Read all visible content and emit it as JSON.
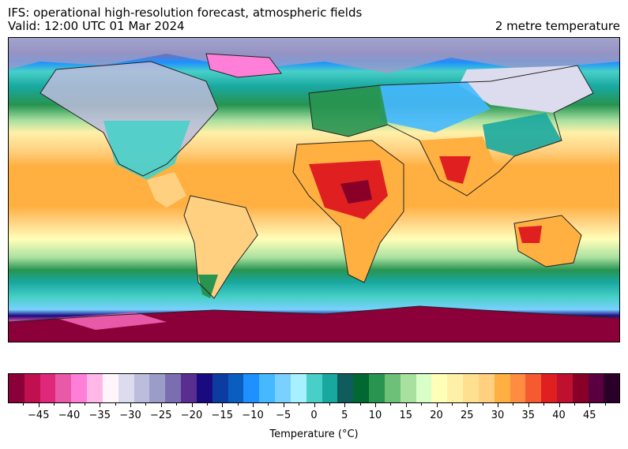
{
  "header": {
    "title_line1": "IFS: operational high-resolution forecast, atmospheric fields",
    "title_line2": "Valid: 12:00 UTC 01 Mar 2024",
    "parameter": "2 metre temperature"
  },
  "colorbar": {
    "label": "Temperature (°C)",
    "min": -50,
    "max": 50,
    "step": 2.5,
    "tick_labels": [
      "−45",
      "−40",
      "−35",
      "−30",
      "−25",
      "−20",
      "−15",
      "−10",
      "−5",
      "0",
      "5",
      "10",
      "15",
      "20",
      "25",
      "30",
      "35",
      "40",
      "45"
    ],
    "tick_values": [
      -45,
      -40,
      -35,
      -30,
      -25,
      -20,
      -15,
      -10,
      -5,
      0,
      5,
      10,
      15,
      20,
      25,
      30,
      35,
      40,
      45
    ],
    "colors": [
      "#8b0039",
      "#c0104f",
      "#e0287a",
      "#e85aa8",
      "#ff7fd8",
      "#ffb8e8",
      "#fff5fb",
      "#dcdcee",
      "#bcbcdc",
      "#9c9cc8",
      "#7a6eb0",
      "#5a2e90",
      "#1a0a80",
      "#0c3ca0",
      "#0a5ec0",
      "#1e90ff",
      "#46b8ff",
      "#7ad0ff",
      "#a6f0ff",
      "#48d0c8",
      "#18a8a0",
      "#105c5c",
      "#006830",
      "#289450",
      "#6cc078",
      "#a8e0a0",
      "#d8ffc8",
      "#ffffb8",
      "#fff0a8",
      "#ffe090",
      "#ffd080",
      "#ffb040",
      "#ff8c40",
      "#f65a30",
      "#e02020",
      "#c01030",
      "#880028",
      "#5a0040",
      "#2a0028"
    ]
  },
  "map": {
    "region": "global",
    "zone_colors": {
      "polar_south": "#8b0039",
      "polar_north": "#bcbcdc",
      "cold": "#0a5ec0",
      "cool": "#48d0c8",
      "mild": "#289450",
      "temperate": "#d8ffc8",
      "warm": "#fff0a8",
      "hot": "#ffb040",
      "very_hot": "#e02020"
    }
  }
}
